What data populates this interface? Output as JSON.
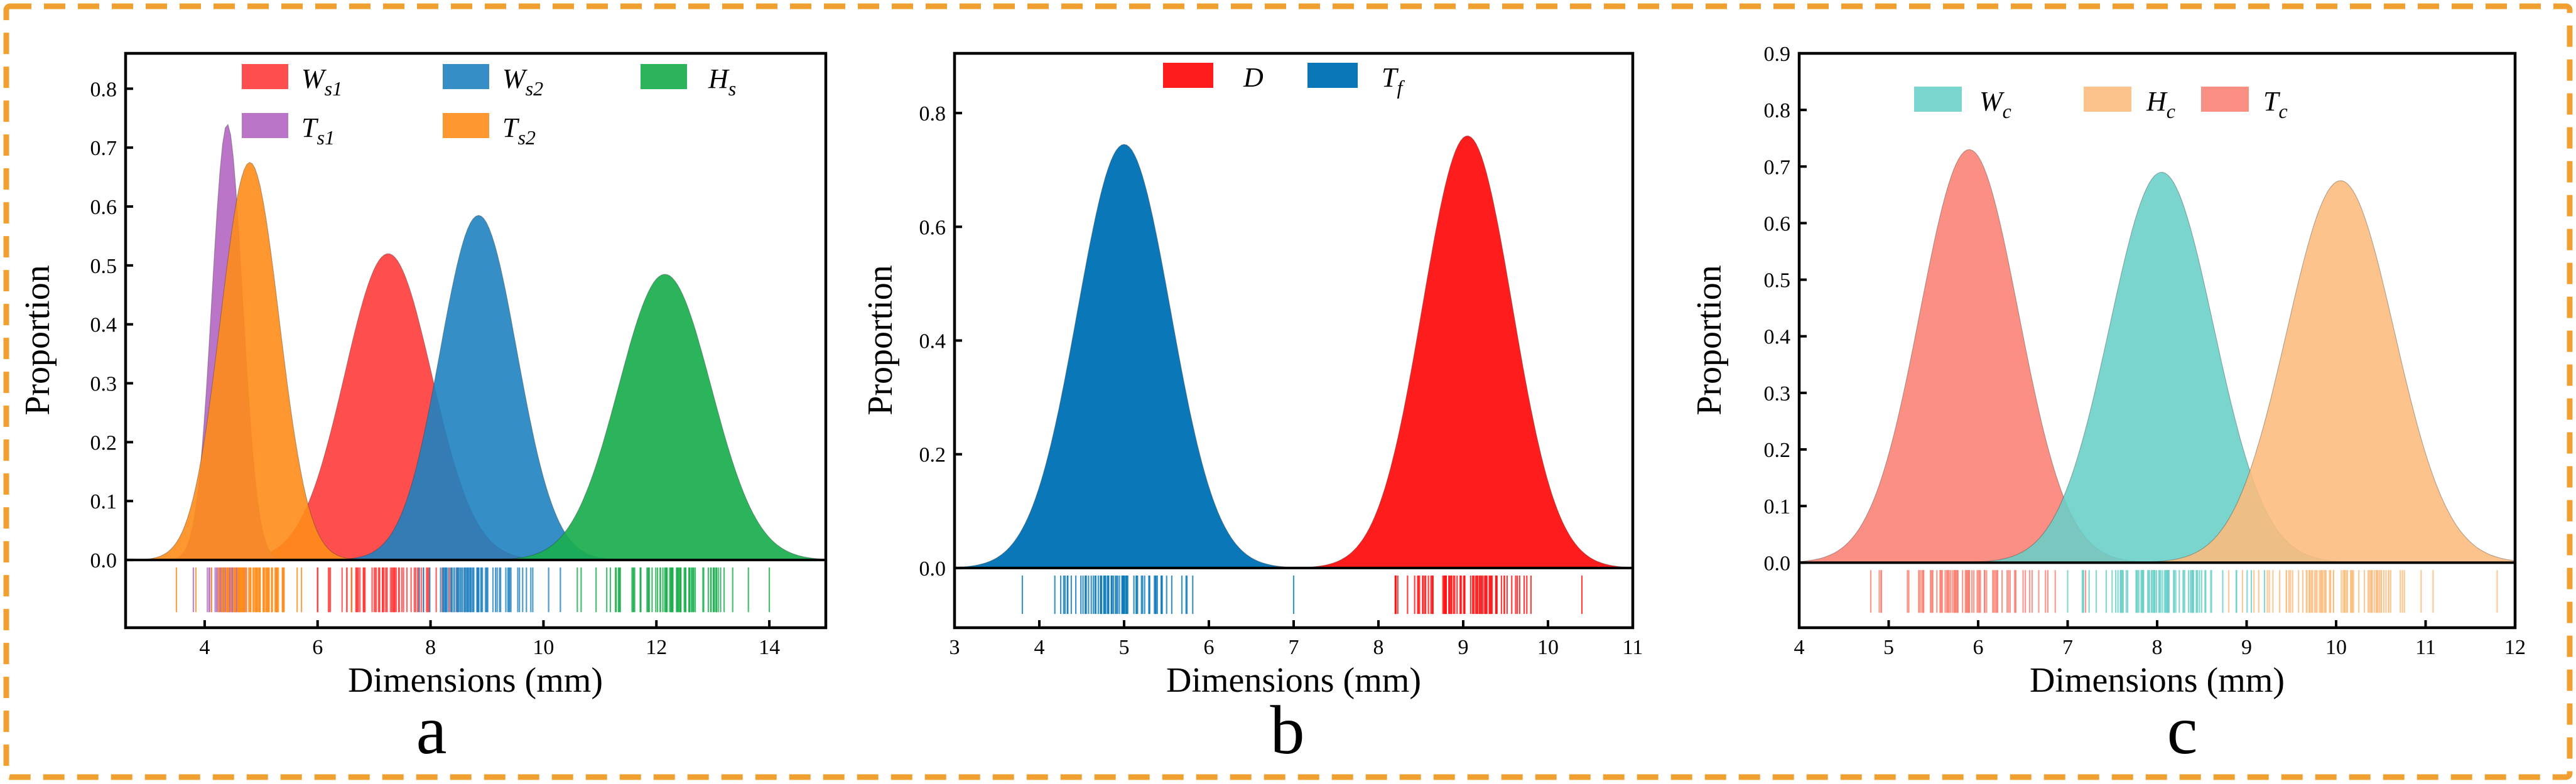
{
  "chart_data": [
    {
      "type": "area",
      "panel_label": "a",
      "title": "",
      "xlabel": "Dimensions (mm)",
      "ylabel": "Proportion",
      "xlim": [
        2.6,
        15.0
      ],
      "ylim": [
        -0.115,
        0.86
      ],
      "xticks": [
        4,
        6,
        8,
        10,
        12,
        14
      ],
      "yticks": [
        0.0,
        0.1,
        0.2,
        0.3,
        0.4,
        0.5,
        0.6,
        0.7,
        0.8
      ],
      "legend_position": "top",
      "legend_columns": 3,
      "series": [
        {
          "id": "Ws1",
          "main": "W",
          "sub": "s1",
          "mean": 7.25,
          "sd": 0.77,
          "peak": 0.52,
          "color": "#ff3b3b",
          "opacity": 0.9,
          "rug_range": [
            6.0,
            8.6
          ],
          "rug_count": 70
        },
        {
          "id": "Ws2",
          "main": "W",
          "sub": "s2",
          "mean": 8.85,
          "sd": 0.68,
          "peak": 0.585,
          "color": "#1f82c0",
          "opacity": 0.9,
          "rug_range": [
            7.8,
            10.3
          ],
          "rug_count": 70
        },
        {
          "id": "Hs",
          "main": "H",
          "sub": "s",
          "mean": 12.15,
          "sd": 0.82,
          "peak": 0.485,
          "color": "#1aae4e",
          "opacity": 0.92,
          "rug_range": [
            10.6,
            14.0
          ],
          "rug_count": 80
        },
        {
          "id": "Ts1",
          "main": "T",
          "sub": "s1",
          "mean": 4.4,
          "sd": 0.27,
          "peak": 0.74,
          "color": "#b366c2",
          "opacity": 0.9,
          "rug_range": [
            3.8,
            5.4
          ],
          "rug_count": 40
        },
        {
          "id": "Ts2",
          "main": "T",
          "sub": "s2",
          "mean": 4.8,
          "sd": 0.52,
          "peak": 0.675,
          "color": "#ff8c1a",
          "opacity": 0.9,
          "rug_range": [
            3.5,
            6.6
          ],
          "rug_count": 80
        }
      ]
    },
    {
      "type": "area",
      "panel_label": "b",
      "title": "",
      "xlabel": "Dimensions (mm)",
      "ylabel": "Proportion",
      "xlim": [
        3.0,
        11.0
      ],
      "ylim": [
        -0.105,
        0.905
      ],
      "xticks": [
        3,
        4,
        5,
        6,
        7,
        8,
        9,
        10,
        11
      ],
      "yticks": [
        0.0,
        0.2,
        0.4,
        0.6,
        0.8
      ],
      "legend_position": "top",
      "legend_columns": 2,
      "series": [
        {
          "id": "D",
          "main": "D",
          "sub": "",
          "mean": 9.05,
          "sd": 0.53,
          "peak": 0.76,
          "color": "#ff1010",
          "opacity": 0.95,
          "rug_range": [
            8.2,
            10.4
          ],
          "rug_count": 80
        },
        {
          "id": "Tf",
          "main": "T",
          "sub": "f",
          "mean": 5.0,
          "sd": 0.55,
          "peak": 0.745,
          "color": "#0a78b8",
          "opacity": 1.0,
          "rug_range": [
            3.8,
            7.0
          ],
          "rug_count": 75
        }
      ]
    },
    {
      "type": "area",
      "panel_label": "c",
      "title": "",
      "xlabel": "Dimensions (mm)",
      "ylabel": "Proportion",
      "xlim": [
        4.0,
        12.0
      ],
      "ylim": [
        -0.115,
        0.9
      ],
      "xticks": [
        4,
        5,
        6,
        7,
        8,
        9,
        10,
        11,
        12
      ],
      "yticks": [
        0.0,
        0.1,
        0.2,
        0.3,
        0.4,
        0.5,
        0.6,
        0.7,
        0.8,
        0.9
      ],
      "legend_position": "top",
      "legend_columns": 3,
      "series": [
        {
          "id": "Tc",
          "main": "T",
          "sub": "c",
          "mean": 5.9,
          "sd": 0.55,
          "peak": 0.73,
          "color": "#fb7f72",
          "opacity": 0.88,
          "rug_range": [
            4.8,
            7.2
          ],
          "rug_count": 80
        },
        {
          "id": "Wc",
          "main": "W",
          "sub": "c",
          "mean": 8.05,
          "sd": 0.58,
          "peak": 0.69,
          "color": "#68cfc8",
          "opacity": 0.88,
          "rug_range": [
            7.0,
            9.2
          ],
          "rug_count": 80
        },
        {
          "id": "Hc",
          "main": "H",
          "sub": "c",
          "mean": 10.05,
          "sd": 0.6,
          "peak": 0.675,
          "color": "#fdbb7c",
          "opacity": 0.88,
          "rug_range": [
            8.8,
            11.8
          ],
          "rug_count": 75
        }
      ]
    }
  ]
}
